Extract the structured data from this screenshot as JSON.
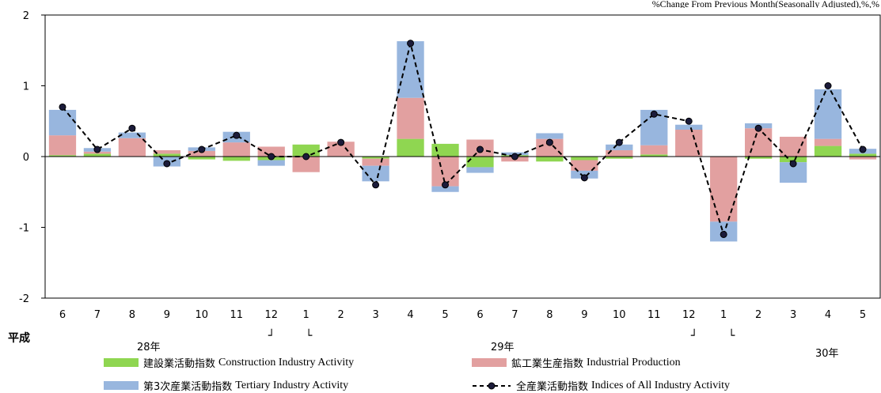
{
  "unit_note": "%Change From Previous Month(Seasonally Adjusted),%,%",
  "era_label": "平成",
  "year_labels": [
    "28年",
    "29年",
    "30年"
  ],
  "bracket_marks": [
    "┘",
    "└",
    "┘",
    "└"
  ],
  "legend": {
    "construction": {
      "jp": "建設業活動指数",
      "en": "Construction Industry Activity"
    },
    "industrial": {
      "jp": "鉱工業生産指数",
      "en": "Industrial Production"
    },
    "tertiary": {
      "jp": "第3次産業活動指数",
      "en": "Tertiary Industry Activity"
    },
    "all": {
      "jp": "全産業活動指数",
      "en": "Indices of All Industry Activity"
    }
  },
  "colors": {
    "construction": "#8fd651",
    "industrial": "#e2a0a0",
    "tertiary": "#98b6de",
    "line": "#000000",
    "marker": "#1b1b3a"
  },
  "chart_data": {
    "type": "bar",
    "stacked": true,
    "categories": [
      "6",
      "7",
      "8",
      "9",
      "10",
      "11",
      "12",
      "1",
      "2",
      "3",
      "4",
      "5",
      "6",
      "7",
      "8",
      "9",
      "10",
      "11",
      "12",
      "1",
      "2",
      "3",
      "4",
      "5"
    ],
    "ylim": [
      -2,
      2
    ],
    "yticks": [
      -2,
      -1,
      0,
      1,
      2
    ],
    "grid": false,
    "series": [
      {
        "name": "建設業活動指数 Construction Industry Activity",
        "key": "construction",
        "kind": "bar",
        "values": [
          0.02,
          0.04,
          0.0,
          0.04,
          -0.04,
          -0.06,
          -0.05,
          0.17,
          0.0,
          -0.03,
          0.25,
          0.18,
          -0.15,
          0.02,
          -0.07,
          -0.05,
          -0.03,
          0.03,
          0.0,
          0.0,
          -0.03,
          -0.08,
          0.15,
          0.04
        ]
      },
      {
        "name": "鉱工業生産指数 Industrial Production",
        "key": "industrial",
        "kind": "bar",
        "values": [
          0.28,
          0.03,
          0.26,
          0.05,
          0.08,
          0.2,
          0.14,
          -0.22,
          0.21,
          -0.1,
          0.58,
          -0.42,
          0.24,
          -0.07,
          0.25,
          -0.15,
          0.09,
          0.13,
          0.38,
          -0.92,
          0.4,
          0.28,
          0.1,
          -0.04
        ]
      },
      {
        "name": "第3次産業活動指数 Tertiary Industry Activity",
        "key": "tertiary",
        "kind": "bar",
        "values": [
          0.36,
          0.05,
          0.08,
          -0.14,
          0.05,
          0.15,
          -0.08,
          0.0,
          0.0,
          -0.22,
          0.8,
          -0.08,
          -0.08,
          0.04,
          0.08,
          -0.11,
          0.08,
          0.5,
          0.07,
          -0.28,
          0.07,
          -0.29,
          0.7,
          0.07
        ]
      },
      {
        "name": "全産業活動指数 Indices of All Industry Activity",
        "key": "all",
        "kind": "line",
        "values": [
          0.7,
          0.1,
          0.4,
          -0.1,
          0.1,
          0.3,
          0.0,
          0.0,
          0.2,
          -0.4,
          1.6,
          -0.4,
          0.1,
          0.0,
          0.2,
          -0.3,
          0.2,
          0.6,
          0.5,
          -1.1,
          0.4,
          -0.1,
          1.0,
          0.1
        ]
      }
    ]
  }
}
